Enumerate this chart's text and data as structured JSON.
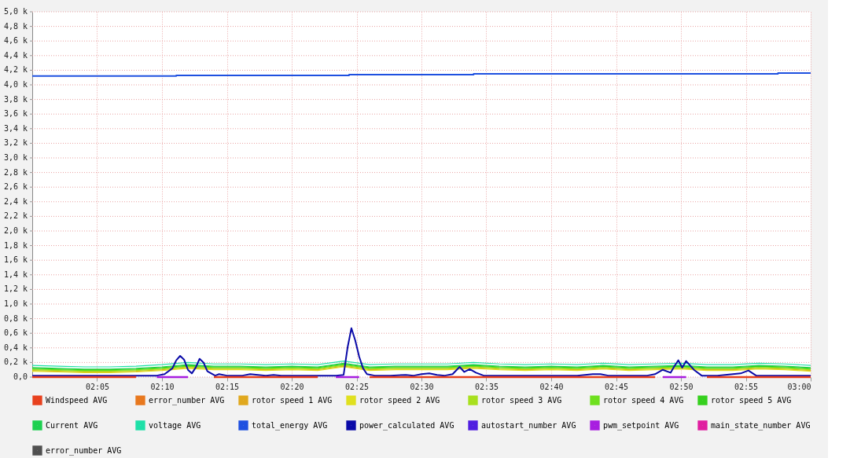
{
  "chart_data": {
    "type": "line",
    "legend": "bottom",
    "grid": true,
    "xlim": [
      2.0,
      3.0
    ],
    "xticks": [
      {
        "value": 2.0833,
        "label": "02:05"
      },
      {
        "value": 2.1667,
        "label": "02:10"
      },
      {
        "value": 2.25,
        "label": "02:15"
      },
      {
        "value": 2.3333,
        "label": "02:20"
      },
      {
        "value": 2.4167,
        "label": "02:25"
      },
      {
        "value": 2.5,
        "label": "02:30"
      },
      {
        "value": 2.5833,
        "label": "02:35"
      },
      {
        "value": 2.6667,
        "label": "02:40"
      },
      {
        "value": 2.75,
        "label": "02:45"
      },
      {
        "value": 2.8333,
        "label": "02:50"
      },
      {
        "value": 2.9167,
        "label": "02:55"
      },
      {
        "value": 3.0,
        "label": "03:00"
      }
    ],
    "ylim": [
      0,
      5000
    ],
    "yticks": [
      {
        "value": 0,
        "label": "0,0"
      },
      {
        "value": 200,
        "label": "0,2 k"
      },
      {
        "value": 400,
        "label": "0,4 k"
      },
      {
        "value": 600,
        "label": "0,6 k"
      },
      {
        "value": 800,
        "label": "0,8 k"
      },
      {
        "value": 1000,
        "label": "1,0 k"
      },
      {
        "value": 1200,
        "label": "1,2 k"
      },
      {
        "value": 1400,
        "label": "1,4 k"
      },
      {
        "value": 1600,
        "label": "1,6 k"
      },
      {
        "value": 1800,
        "label": "1,8 k"
      },
      {
        "value": 2000,
        "label": "2,0 k"
      },
      {
        "value": 2200,
        "label": "2,2 k"
      },
      {
        "value": 2400,
        "label": "2,4 k"
      },
      {
        "value": 2600,
        "label": "2,6 k"
      },
      {
        "value": 2800,
        "label": "2,8 k"
      },
      {
        "value": 3000,
        "label": "3,0 k"
      },
      {
        "value": 3200,
        "label": "3,2 k"
      },
      {
        "value": 3400,
        "label": "3,4 k"
      },
      {
        "value": 3600,
        "label": "3,6 k"
      },
      {
        "value": 3800,
        "label": "3,8 k"
      },
      {
        "value": 4000,
        "label": "4,0 k"
      },
      {
        "value": 4200,
        "label": "4,2 k"
      },
      {
        "value": 4400,
        "label": "4,4 k"
      },
      {
        "value": 4600,
        "label": "4,6 k"
      },
      {
        "value": 4800,
        "label": "4,8 k"
      },
      {
        "value": 5000,
        "label": "5,0 k"
      }
    ],
    "x": [
      2.0,
      2.0333,
      2.0667,
      2.1,
      2.1333,
      2.1667,
      2.2,
      2.2333,
      2.2667,
      2.3,
      2.3333,
      2.3667,
      2.4,
      2.4333,
      2.4667,
      2.5,
      2.5333,
      2.5667,
      2.6,
      2.6333,
      2.6667,
      2.7,
      2.7333,
      2.7667,
      2.8,
      2.8333,
      2.8667,
      2.9,
      2.9333,
      2.9667,
      3.0
    ],
    "line_style": "solid",
    "marker": "none",
    "series": [
      {
        "name": "Windspeed AVG",
        "color": "#e8411e",
        "values": [
          0,
          0,
          0,
          0,
          0,
          null,
          null,
          0,
          0,
          0,
          0,
          0,
          null,
          0,
          0,
          0,
          0,
          0,
          0,
          0,
          0,
          0,
          0,
          0,
          0,
          null,
          0,
          0,
          0,
          0,
          0
        ]
      },
      {
        "name": "error_number AVG",
        "color": "#e8781e",
        "values": [
          null,
          null,
          null,
          null,
          null,
          null,
          null,
          null,
          null,
          null,
          null,
          null,
          null,
          null,
          null,
          null,
          null,
          null,
          null,
          null,
          null,
          null,
          null,
          null,
          null,
          null,
          null,
          null,
          null,
          null,
          null
        ]
      },
      {
        "name": "rotor speed 1 AVG",
        "color": "#e0a81e",
        "values": [
          90,
          80,
          70,
          70,
          80,
          100,
          130,
          110,
          110,
          100,
          110,
          100,
          150,
          100,
          110,
          110,
          110,
          130,
          110,
          100,
          110,
          100,
          120,
          100,
          110,
          120,
          100,
          100,
          120,
          110,
          90
        ]
      },
      {
        "name": "rotor speed 2 AVG",
        "color": "#e0e01e",
        "values": [
          80,
          70,
          60,
          60,
          70,
          90,
          120,
          100,
          100,
          90,
          100,
          90,
          140,
          90,
          100,
          100,
          100,
          120,
          100,
          90,
          100,
          90,
          110,
          90,
          100,
          110,
          90,
          90,
          110,
          100,
          80
        ]
      },
      {
        "name": "rotor speed 3 AVG",
        "color": "#a8e01e",
        "values": [
          100,
          90,
          80,
          80,
          90,
          110,
          140,
          120,
          120,
          110,
          120,
          110,
          160,
          110,
          120,
          120,
          120,
          140,
          120,
          110,
          120,
          110,
          130,
          110,
          120,
          130,
          110,
          110,
          130,
          120,
          100
        ]
      },
      {
        "name": "rotor speed 4 AVG",
        "color": "#6ee01e",
        "values": [
          110,
          100,
          90,
          90,
          100,
          120,
          150,
          130,
          130,
          120,
          130,
          120,
          170,
          120,
          130,
          130,
          130,
          150,
          130,
          120,
          130,
          120,
          140,
          120,
          130,
          140,
          120,
          120,
          140,
          130,
          110
        ]
      },
      {
        "name": "rotor speed 5 AVG",
        "color": "#36d01e",
        "values": [
          120,
          110,
          100,
          100,
          110,
          130,
          160,
          140,
          140,
          130,
          140,
          130,
          180,
          130,
          140,
          140,
          140,
          160,
          140,
          130,
          140,
          130,
          150,
          130,
          140,
          150,
          130,
          130,
          150,
          140,
          120
        ]
      },
      {
        "name": "Current AVG",
        "color": "#1ed050",
        "values": [
          130,
          120,
          110,
          110,
          120,
          140,
          170,
          150,
          150,
          140,
          150,
          140,
          190,
          140,
          150,
          150,
          150,
          170,
          150,
          140,
          150,
          140,
          160,
          140,
          150,
          160,
          140,
          140,
          160,
          150,
          130
        ]
      },
      {
        "name": "voltage AVG",
        "color": "#1ee0a8",
        "values": [
          160,
          150,
          140,
          140,
          150,
          170,
          200,
          180,
          180,
          170,
          180,
          170,
          220,
          170,
          180,
          180,
          180,
          200,
          180,
          170,
          180,
          170,
          190,
          170,
          180,
          190,
          170,
          170,
          190,
          180,
          160
        ]
      },
      {
        "name": "total_energy AVG",
        "color": "#1e50e0",
        "type": "step",
        "x": [
          2.0,
          2.185,
          2.407,
          2.567,
          2.958,
          3.0
        ],
        "values": [
          4120,
          4130,
          4140,
          4150,
          4160,
          4160
        ]
      },
      {
        "name": "power_calculated AVG",
        "color": "#0a0aa8",
        "x": [
          2.0,
          2.15,
          2.16,
          2.17,
          2.18,
          2.185,
          2.19,
          2.195,
          2.2,
          2.205,
          2.21,
          2.215,
          2.22,
          2.225,
          2.235,
          2.24,
          2.25,
          2.27,
          2.28,
          2.29,
          2.3,
          2.31,
          2.32,
          2.34,
          2.35,
          2.37,
          2.39,
          2.4,
          2.405,
          2.41,
          2.415,
          2.42,
          2.425,
          2.43,
          2.44,
          2.46,
          2.48,
          2.49,
          2.5,
          2.51,
          2.52,
          2.53,
          2.54,
          2.549,
          2.555,
          2.562,
          2.57,
          2.58,
          2.6,
          2.62,
          2.64,
          2.66,
          2.68,
          2.7,
          2.72,
          2.73,
          2.74,
          2.75,
          2.78,
          2.79,
          2.8,
          2.81,
          2.82,
          2.825,
          2.83,
          2.835,
          2.84,
          2.85,
          2.86,
          2.88,
          2.9,
          2.91,
          2.92,
          2.93,
          2.95,
          2.97,
          2.99,
          3.0
        ],
        "values": [
          20,
          20,
          20,
          40,
          120,
          230,
          290,
          240,
          100,
          50,
          130,
          250,
          200,
          80,
          20,
          40,
          20,
          20,
          40,
          30,
          20,
          30,
          20,
          20,
          20,
          20,
          20,
          30,
          400,
          670,
          500,
          280,
          120,
          40,
          20,
          20,
          30,
          20,
          40,
          50,
          30,
          20,
          40,
          140,
          70,
          110,
          60,
          20,
          20,
          20,
          20,
          20,
          20,
          20,
          40,
          40,
          20,
          20,
          20,
          20,
          40,
          100,
          60,
          150,
          230,
          130,
          220,
          100,
          20,
          20,
          40,
          50,
          90,
          20,
          20,
          20,
          20,
          20
        ]
      },
      {
        "name": "autostart_number AVG",
        "color": "#501ee0",
        "values": [
          null,
          null,
          null,
          null,
          null,
          null,
          null,
          null,
          null,
          null,
          null,
          null,
          null,
          null,
          null,
          null,
          null,
          null,
          null,
          null,
          null,
          null,
          null,
          null,
          null,
          null,
          null,
          null,
          null,
          null,
          null
        ]
      },
      {
        "name": "pwm_setpoint AVG",
        "color": "#a81ee0",
        "x": [
          2.16,
          2.2,
          2.21,
          2.39,
          2.42,
          2.43,
          2.81,
          2.84
        ],
        "values": [
          0,
          0,
          null,
          0,
          0,
          null,
          0,
          0
        ]
      },
      {
        "name": "main_state_number AVG",
        "color": "#e01ea0",
        "values": [
          null,
          null,
          null,
          null,
          null,
          null,
          null,
          null,
          null,
          null,
          null,
          null,
          null,
          null,
          null,
          null,
          null,
          null,
          null,
          null,
          null,
          null,
          null,
          null,
          null,
          null,
          null,
          null,
          null,
          null,
          null
        ]
      },
      {
        "name": "error_number AVG",
        "color": "#505050",
        "values": [
          null,
          null,
          null,
          null,
          null,
          null,
          null,
          null,
          null,
          null,
          null,
          null,
          null,
          null,
          null,
          null,
          null,
          null,
          null,
          null,
          null,
          null,
          null,
          null,
          null,
          null,
          null,
          null,
          null,
          null,
          null
        ]
      }
    ]
  }
}
